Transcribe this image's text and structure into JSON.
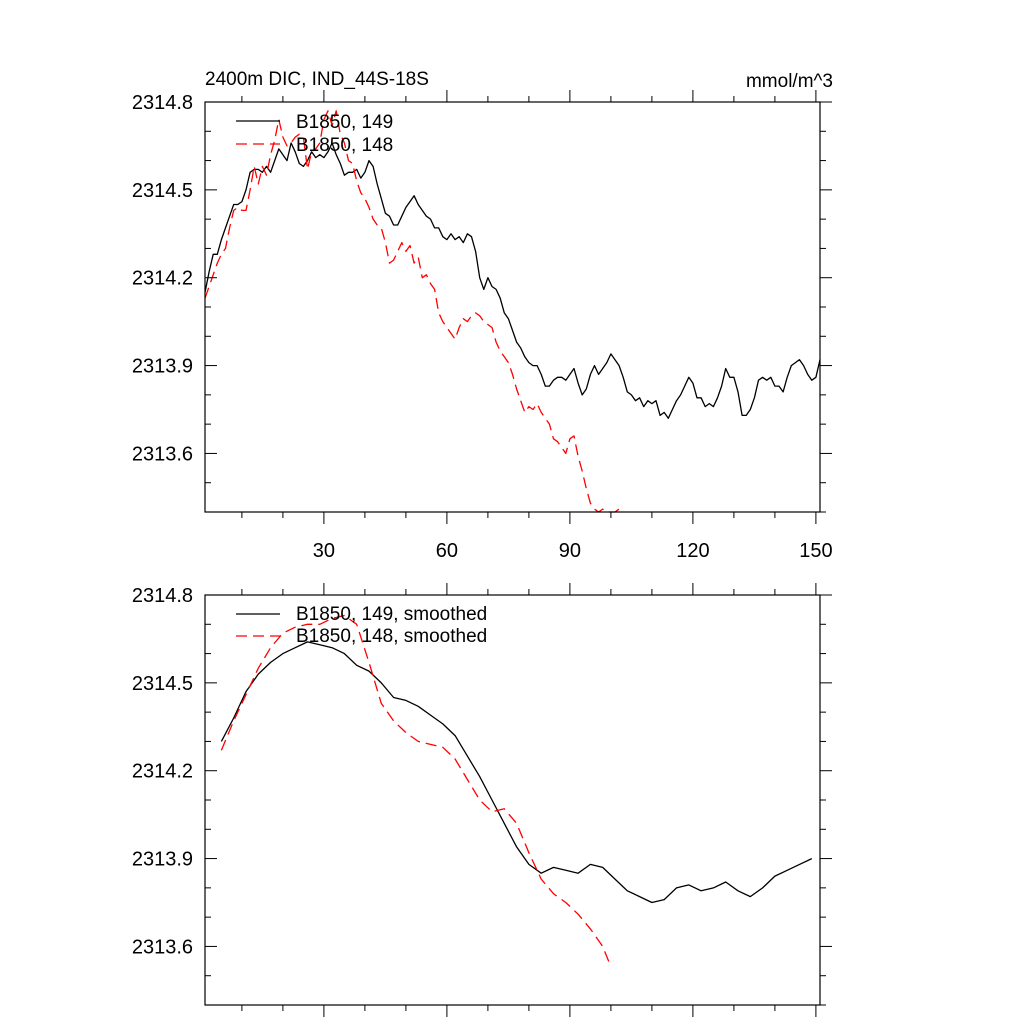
{
  "chart_data": [
    {
      "type": "line",
      "title": "2400m DIC, IND_44S-18S",
      "units": "mmol/m^3",
      "ylim": [
        2313.4,
        2314.8
      ],
      "xlim": [
        1,
        151
      ],
      "yticks": [
        "2313.6",
        "2313.9",
        "2314.2",
        "2314.5",
        "2314.8"
      ],
      "xticks": [
        "30",
        "60",
        "90",
        "120",
        "150"
      ],
      "grid": false,
      "legend_position": "top-left",
      "series": [
        {
          "name": "B1850, 149",
          "color": "#000000",
          "dash": "solid",
          "x": [
            1,
            2,
            3,
            4,
            5,
            6,
            7,
            8,
            9,
            10,
            11,
            12,
            13,
            14,
            15,
            16,
            17,
            18,
            19,
            20,
            21,
            22,
            23,
            24,
            25,
            26,
            27,
            28,
            29,
            30,
            31,
            32,
            33,
            34,
            35,
            36,
            37,
            38,
            39,
            40,
            41,
            42,
            43,
            44,
            45,
            46,
            47,
            48,
            49,
            50,
            51,
            52,
            53,
            54,
            55,
            56,
            57,
            58,
            59,
            60,
            61,
            62,
            63,
            64,
            65,
            66,
            67,
            68,
            69,
            70,
            71,
            72,
            73,
            74,
            75,
            76,
            77,
            78,
            79,
            80,
            81,
            82,
            83,
            84,
            85,
            86,
            87,
            88,
            89,
            90,
            91,
            92,
            93,
            94,
            95,
            96,
            97,
            98,
            99,
            100,
            101,
            102,
            103,
            104,
            105,
            106,
            107,
            108,
            109,
            110,
            111,
            112,
            113,
            114,
            115,
            116,
            117,
            118,
            119,
            120,
            121,
            122,
            123,
            124,
            125,
            126,
            127,
            128,
            129,
            130,
            131,
            132,
            133,
            134,
            135,
            136,
            137,
            138,
            139,
            140,
            141,
            142,
            143,
            144,
            145,
            146,
            147,
            148,
            149,
            150,
            151
          ],
          "y": [
            2314.15,
            2314.22,
            2314.28,
            2314.28,
            2314.33,
            2314.37,
            2314.41,
            2314.45,
            2314.45,
            2314.46,
            2314.5,
            2314.56,
            2314.57,
            2314.57,
            2314.56,
            2314.58,
            2314.56,
            2314.6,
            2314.64,
            2314.62,
            2314.6,
            2314.66,
            2314.63,
            2314.59,
            2314.58,
            2314.6,
            2314.63,
            2314.61,
            2314.62,
            2314.61,
            2314.63,
            2314.66,
            2314.62,
            2314.59,
            2314.55,
            2314.56,
            2314.56,
            2314.57,
            2314.54,
            2314.56,
            2314.6,
            2314.58,
            2314.52,
            2314.47,
            2314.42,
            2314.41,
            2314.38,
            2314.38,
            2314.41,
            2314.44,
            2314.46,
            2314.48,
            2314.45,
            2314.43,
            2314.41,
            2314.4,
            2314.37,
            2314.37,
            2314.34,
            2314.33,
            2314.35,
            2314.33,
            2314.34,
            2314.32,
            2314.35,
            2314.34,
            2314.29,
            2314.2,
            2314.16,
            2314.2,
            2314.17,
            2314.16,
            2314.13,
            2314.08,
            2314.06,
            2314.02,
            2313.98,
            2313.96,
            2313.93,
            2313.91,
            2313.9,
            2313.9,
            2313.87,
            2313.83,
            2313.83,
            2313.85,
            2313.86,
            2313.86,
            2313.85,
            2313.87,
            2313.89,
            2313.84,
            2313.8,
            2313.82,
            2313.87,
            2313.9,
            2313.87,
            2313.89,
            2313.91,
            2313.94,
            2313.92,
            2313.9,
            2313.86,
            2313.81,
            2313.8,
            2313.78,
            2313.79,
            2313.76,
            2313.78,
            2313.77,
            2313.78,
            2313.73,
            2313.74,
            2313.72,
            2313.75,
            2313.78,
            2313.8,
            2313.83,
            2313.86,
            2313.84,
            2313.79,
            2313.79,
            2313.76,
            2313.77,
            2313.76,
            2313.79,
            2313.83,
            2313.89,
            2313.86,
            2313.86,
            2313.81,
            2313.73,
            2313.73,
            2313.75,
            2313.79,
            2313.85,
            2313.86,
            2313.85,
            2313.86,
            2313.83,
            2313.83,
            2313.81,
            2313.86,
            2313.9,
            2313.91,
            2313.92,
            2313.9,
            2313.87,
            2313.85,
            2313.86,
            2313.92
          ]
        },
        {
          "name": "B1850, 148",
          "color": "#ff0000",
          "dash": "dashed",
          "x": [
            1,
            4,
            5,
            6,
            7,
            8,
            9,
            10,
            11,
            12,
            13,
            14,
            15,
            16,
            17,
            18,
            19,
            20,
            21,
            22,
            23,
            24,
            25,
            26,
            27,
            28,
            29,
            30,
            31,
            32,
            33,
            34,
            35,
            36,
            37,
            38,
            39,
            40,
            41,
            42,
            43,
            44,
            45,
            46,
            47,
            48,
            49,
            50,
            51,
            52,
            53,
            54,
            55,
            56,
            57,
            58,
            59,
            60,
            61,
            62,
            63,
            64,
            65,
            66,
            67,
            68,
            69,
            70,
            71,
            72,
            73,
            74,
            75,
            76,
            77,
            78,
            79,
            80,
            81,
            82,
            83,
            84,
            85,
            86,
            87,
            88,
            89,
            90,
            91,
            92,
            93,
            94,
            95,
            96,
            97,
            98,
            99,
            100,
            101,
            102
          ],
          "y": [
            2314.13,
            2314.25,
            2314.28,
            2314.3,
            2314.37,
            2314.43,
            2314.44,
            2314.43,
            2314.43,
            2314.5,
            2314.58,
            2314.52,
            2314.58,
            2314.55,
            2314.62,
            2314.67,
            2314.74,
            2314.68,
            2314.65,
            2314.66,
            2314.68,
            2314.69,
            2314.68,
            2314.57,
            2314.63,
            2314.64,
            2314.66,
            2314.74,
            2314.77,
            2314.72,
            2314.77,
            2314.69,
            2314.66,
            2314.6,
            2314.59,
            2314.53,
            2314.49,
            2314.47,
            2314.44,
            2314.4,
            2314.38,
            2314.37,
            2314.32,
            2314.25,
            2314.26,
            2314.29,
            2314.32,
            2314.29,
            2314.31,
            2314.25,
            2314.27,
            2314.2,
            2314.21,
            2314.18,
            2314.16,
            2314.08,
            2314.05,
            2314.03,
            2314.01,
            2313.99,
            2314.03,
            2314.06,
            2314.05,
            2314.07,
            2314.08,
            2314.07,
            2314.05,
            2314.04,
            2314.03,
            2313.98,
            2313.95,
            2313.93,
            2313.91,
            2313.87,
            2313.82,
            2313.78,
            2313.74,
            2313.76,
            2313.75,
            2313.77,
            2313.74,
            2313.72,
            2313.7,
            2313.65,
            2313.64,
            2313.62,
            2313.6,
            2313.65,
            2313.66,
            2313.59,
            2313.54,
            2313.48,
            2313.43,
            2313.41,
            2313.4,
            2313.41,
            2313.4,
            2313.4,
            2313.4,
            2313.41
          ]
        }
      ]
    },
    {
      "type": "line",
      "title": "",
      "ylim": [
        2313.4,
        2314.8
      ],
      "xlim": [
        1,
        151
      ],
      "yticks": [
        "2313.6",
        "2313.9",
        "2314.2",
        "2314.5",
        "2314.8"
      ],
      "xticks": [],
      "grid": false,
      "legend_position": "top-left",
      "series": [
        {
          "name": "B1850, 149, smoothed",
          "color": "#000000",
          "dash": "solid",
          "x": [
            5,
            8,
            11,
            14,
            17,
            20,
            23,
            26,
            29,
            32,
            35,
            38,
            41,
            44,
            47,
            50,
            53,
            56,
            59,
            62,
            65,
            68,
            71,
            74,
            77,
            80,
            83,
            86,
            89,
            92,
            95,
            98,
            101,
            104,
            107,
            110,
            113,
            116,
            119,
            122,
            125,
            128,
            131,
            134,
            137,
            140,
            143,
            146,
            149
          ],
          "y": [
            2314.3,
            2314.38,
            2314.47,
            2314.53,
            2314.57,
            2314.6,
            2314.62,
            2314.64,
            2314.63,
            2314.62,
            2314.6,
            2314.56,
            2314.54,
            2314.5,
            2314.45,
            2314.44,
            2314.42,
            2314.39,
            2314.36,
            2314.32,
            2314.25,
            2314.18,
            2314.1,
            2314.02,
            2313.94,
            2313.88,
            2313.85,
            2313.87,
            2313.86,
            2313.85,
            2313.88,
            2313.87,
            2313.83,
            2313.79,
            2313.77,
            2313.75,
            2313.76,
            2313.8,
            2313.81,
            2313.79,
            2313.8,
            2313.82,
            2313.79,
            2313.77,
            2313.8,
            2313.84,
            2313.86,
            2313.88,
            2313.9
          ]
        },
        {
          "name": "B1850, 148, smoothed",
          "color": "#ff0000",
          "dash": "dashed",
          "x": [
            5,
            8,
            11,
            14,
            17,
            20,
            23,
            26,
            29,
            32,
            35,
            38,
            41,
            44,
            47,
            50,
            53,
            56,
            59,
            62,
            65,
            68,
            71,
            74,
            77,
            80,
            83,
            86,
            89,
            92,
            95,
            98,
            100
          ],
          "y": [
            2314.27,
            2314.37,
            2314.46,
            2314.55,
            2314.62,
            2314.67,
            2314.69,
            2314.7,
            2314.7,
            2314.72,
            2314.73,
            2314.7,
            2314.57,
            2314.43,
            2314.37,
            2314.33,
            2314.3,
            2314.29,
            2314.28,
            2314.24,
            2314.17,
            2314.1,
            2314.06,
            2314.07,
            2314.02,
            2313.92,
            2313.83,
            2313.78,
            2313.75,
            2313.71,
            2313.66,
            2313.6,
            2313.53
          ]
        }
      ]
    }
  ]
}
